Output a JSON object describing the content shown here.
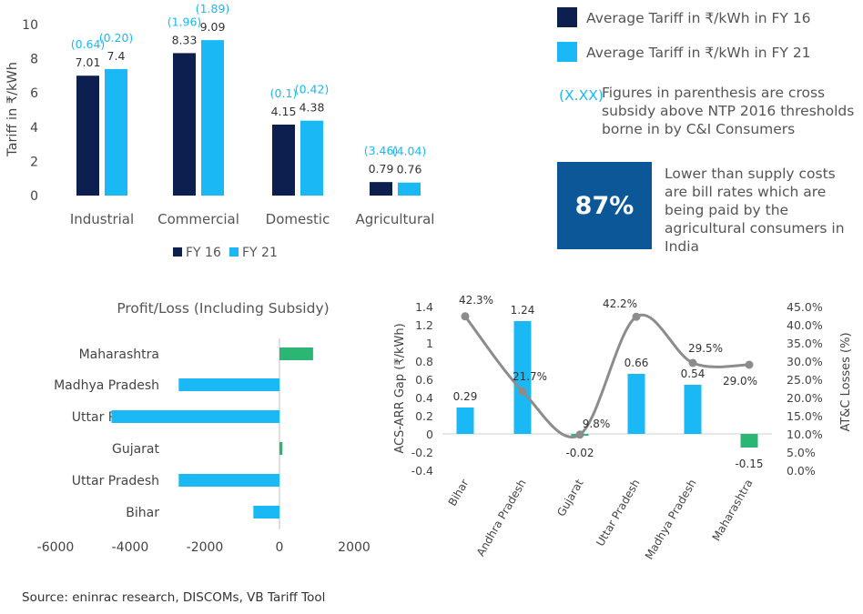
{
  "colors": {
    "fy16": "#0d1f4f",
    "fy21": "#1ab8f5",
    "paren": "#1ab8f5",
    "dark_box": "#0b5797",
    "positive": "#2cb673",
    "line": "#8c8c8c"
  },
  "legend": {
    "fy16_label": "Average Tariff in ₹/kWh in FY 16",
    "fy21_label": "Average Tariff in ₹/kWh in FY 21",
    "paren_key": "(X.XX)",
    "paren_text": "Figures in parenthesis are cross subsidy above NTP 2016 thresholds borne in by C&I Consumers"
  },
  "stat": {
    "value": "87%",
    "text": "Lower than supply costs are bill rates which are being paid by the agricultural consumers in India"
  },
  "source": "Source: eninrac research, DISCOMs, VB Tariff Tool",
  "chart_data": [
    {
      "type": "bar",
      "ylabel": "Tariff in ₹/kWh",
      "ylim": [
        0,
        10
      ],
      "yticks": [
        0,
        2,
        4,
        6,
        8,
        10
      ],
      "categories": [
        "Industrial",
        "Commercial",
        "Domestic",
        "Agricultural"
      ],
      "series": [
        {
          "name": "FY 16",
          "values": [
            7.01,
            8.33,
            4.15,
            0.79
          ],
          "labels": [
            "7.01",
            "8.33",
            "4.15",
            "0.79"
          ],
          "paren": [
            "(0.64)",
            "(1.96)",
            "(0.1)",
            "(3.46)"
          ]
        },
        {
          "name": "FY 21",
          "values": [
            7.4,
            9.09,
            4.38,
            0.76
          ],
          "labels": [
            "7.4",
            "9.09",
            "4.38",
            "0.76"
          ],
          "paren": [
            "(0.20)",
            "(1.89)",
            "(0.42)",
            "(4.04)"
          ]
        }
      ],
      "legend": "bottom"
    },
    {
      "type": "bar",
      "orientation": "horizontal",
      "title": "Profit/Loss (Including Subsidy)",
      "categories": [
        "Maharashtra",
        "Madhya Pradesh",
        "Uttar Pradesh",
        "Gujarat",
        "Uttar Pradesh",
        "Bihar"
      ],
      "values": [
        900,
        -2700,
        -4500,
        80,
        -2700,
        -700
      ],
      "xlim": [
        -6000,
        2000
      ],
      "xticks": [
        -6000,
        -4000,
        -2000,
        0,
        2000
      ]
    },
    {
      "type": "bar",
      "categories": [
        "Bihar",
        "Andhra Pradesh",
        "Gujarat",
        "Uttar Pradesh",
        "Madhya Pradesh",
        "Maharashtra"
      ],
      "ylabel": "ACS-ARR Gap (₹/kWh)",
      "ylim": [
        -0.4,
        1.4
      ],
      "yticks": [
        "-0.4",
        "-0.2",
        "0",
        "0.2",
        "0.4",
        "0.6",
        "0.8",
        "1",
        "1.2",
        "1.4"
      ],
      "bars": {
        "values": [
          0.29,
          1.24,
          -0.02,
          0.66,
          0.54,
          -0.15
        ],
        "labels": [
          "0.29",
          "1.24",
          "-0.02",
          "0.66",
          "0.54",
          "-0.15"
        ]
      },
      "line": {
        "values": [
          42.3,
          21.7,
          9.8,
          42.2,
          29.5,
          29.0
        ],
        "labels": [
          "42.3%",
          "21.7%",
          "9.8%",
          "42.2%",
          "29.5%",
          "29.0%"
        ]
      },
      "y2label": "AT&C Losses (%)",
      "y2lim": [
        0,
        45
      ],
      "y2ticks": [
        "0.0%",
        "5.0%",
        "10.0%",
        "15.0%",
        "20.0%",
        "25.0%",
        "30.0%",
        "35.0%",
        "40.0%",
        "45.0%"
      ]
    }
  ]
}
